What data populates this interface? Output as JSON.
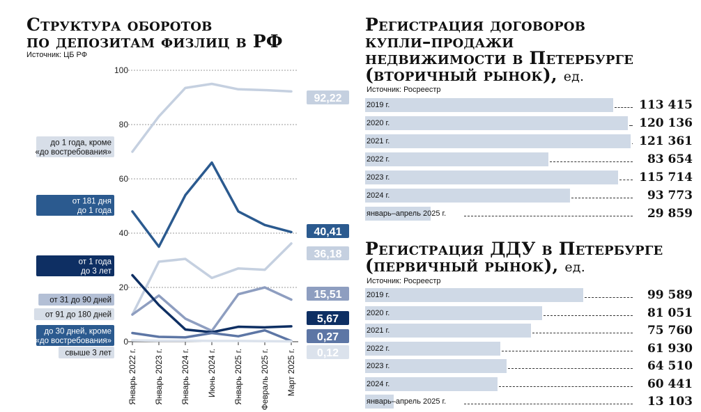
{
  "left": {
    "title_line1": "Структура оборотов",
    "title_line2": "по депозитам физлиц в РФ",
    "source": "Источник: ЦБ РФ"
  },
  "right_top": {
    "title_line1": "Регистрация договоров",
    "title_line2": "купли–продажи",
    "title_line3": "недвижимости в Петербурге",
    "title_line4": "(вторичный рынок),",
    "title_unit": "ед.",
    "source": "Источник: Росреестр"
  },
  "right_bottom": {
    "title_line1": "Регистрация ДДУ в Петербурге",
    "title_line2": "(первичный рынок),",
    "title_unit": "ед.",
    "source": "Источник: Росреестр"
  },
  "chart_data": [
    {
      "type": "line",
      "title": "Структура оборотов по депозитам физлиц в РФ",
      "x": [
        "Январь 2022 г.",
        "Январь 2023 г.",
        "Январь 2024 г.",
        "Июнь 2024 г.",
        "Январь 2025 г.",
        "Февраль 2025 г.",
        "Март 2025 г."
      ],
      "ylim": [
        0,
        100
      ],
      "yticks": [
        0,
        20,
        40,
        60,
        80,
        100
      ],
      "grid": true,
      "series": [
        {
          "name": "до 1 года, кроме «до востребования»",
          "values": [
            70,
            83,
            93.5,
            95,
            93,
            92.7,
            92.22
          ],
          "color": "#c5d0e0",
          "label": "92,22",
          "label_bg": "#c5d0e0",
          "label_color": "#ffffff"
        },
        {
          "name": "от 181 дня до 1 года",
          "values": [
            48,
            35,
            54,
            66,
            48,
            43,
            40.41
          ],
          "color": "#2b5a8f",
          "label": "40,41",
          "label_bg": "#2b5a8f",
          "label_color": "#ffffff"
        },
        {
          "name": "от 1 года до 3 лет",
          "values": [
            10,
            29.5,
            30.5,
            23.5,
            27,
            26.5,
            36.18
          ],
          "color": "#c5d0e0",
          "label": "36,18",
          "label_bg": "#c5d0e0",
          "label_color": "#ffffff"
        },
        {
          "name": "от 31 до 90 дней",
          "values": [
            10,
            17,
            8.5,
            4,
            17.5,
            20,
            15.51
          ],
          "color": "#8e9ec0",
          "label": "15,51",
          "label_bg": "#8e9ec0",
          "label_color": "#ffffff"
        },
        {
          "name": "от 91 до 180 дней",
          "values": [
            24.5,
            13.5,
            4.5,
            3.5,
            5.5,
            5.3,
            5.67
          ],
          "color": "#0e2f63",
          "label": "5,67",
          "label_bg": "#0e2f63",
          "label_color": "#ffffff"
        },
        {
          "name": "до 30 дней, кроме «до востребования»",
          "values": [
            3.2,
            1.8,
            1.6,
            3.2,
            2,
            4.2,
            0.27
          ],
          "color": "#5d76a5",
          "label": "0,27",
          "label_bg": "#5d76a5",
          "label_color": "#ffffff"
        },
        {
          "name": "свыше 3 лет",
          "values": [
            0.5,
            0.4,
            0.4,
            0.3,
            0.3,
            0.2,
            0.12
          ],
          "color": "#dbe2ec",
          "label": "0,12",
          "label_bg": "#dbe2ec",
          "label_color": "#ffffff"
        }
      ],
      "legend": [
        {
          "line1": "до 1 года, кроме",
          "line2": "«до востребования»",
          "bg": "#d7dee8",
          "color": "#111111"
        },
        {
          "line1": "от 181 дня",
          "line2": "до 1 года",
          "bg": "#2b5a8f",
          "color": "#ffffff"
        },
        {
          "line1": "от 1 года",
          "line2": "до 3 лет",
          "bg": "#0e2f63",
          "color": "#ffffff"
        },
        {
          "line1": "от 31 до 90 дней",
          "line2": "",
          "bg": "#b3bfd5",
          "color": "#111111"
        },
        {
          "line1": "от 91 до 180 дней",
          "line2": "",
          "bg": "#d7dee8",
          "color": "#111111"
        },
        {
          "line1": "до 30 дней, кроме",
          "line2": "«до востребования»",
          "bg": "#2b5a8f",
          "color": "#ffffff"
        },
        {
          "line1": "свыше 3 лет",
          "line2": "",
          "bg": "#d7dee8",
          "color": "#111111"
        }
      ]
    },
    {
      "type": "bar",
      "orientation": "horizontal",
      "title": "Регистрация договоров купли–продажи недвижимости в Петербурге (вторичный рынок), ед.",
      "categories": [
        "2019 г.",
        "2020 г.",
        "2021 г.",
        "2022 г.",
        "2023 г.",
        "2024 г.",
        "январь–апрель 2025 г."
      ],
      "values": [
        113415,
        120136,
        121361,
        83654,
        115714,
        93773,
        29859
      ],
      "labels": [
        "113 415",
        "120 136",
        "121 361",
        "83 654",
        "115 714",
        "93 773",
        "29 859"
      ],
      "xlim": [
        0,
        121361
      ],
      "bar_color": "#cfd9e6"
    },
    {
      "type": "bar",
      "orientation": "horizontal",
      "title": "Регистрация ДДУ в Петербурге (первичный рынок), ед.",
      "categories": [
        "2019 г.",
        "2020 г.",
        "2021 г.",
        "2022 г.",
        "2023 г.",
        "2024 г.",
        "январь–апрель 2025 г."
      ],
      "values": [
        99589,
        81051,
        75760,
        61930,
        64510,
        60441,
        13103
      ],
      "labels": [
        "99 589",
        "81 051",
        "75 760",
        "61 930",
        "64 510",
        "60 441",
        "13 103"
      ],
      "xlim": [
        0,
        121361
      ],
      "bar_color": "#cfd9e6"
    }
  ]
}
